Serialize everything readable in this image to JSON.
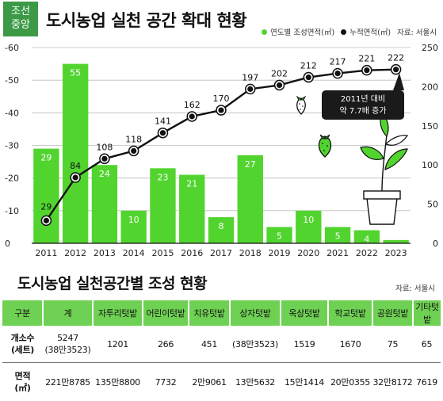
{
  "logo": {
    "line1": "조선",
    "line2": "중앙"
  },
  "title": "도시농업 실천 공간 확대 현황",
  "legend": {
    "bar_label": "연도별 조성면적(㎡)",
    "line_label": "누적면적(㎡)",
    "source": "자료: 서울시"
  },
  "colors": {
    "bar": "#52d42f",
    "line": "#111111",
    "header_bg": "#6fd153"
  },
  "annotation": {
    "line1": "2011년 대비",
    "line2": "약 7.7배 증가"
  },
  "chart_data": {
    "type": "bar+line",
    "categories": [
      "2011",
      "2012",
      "2013",
      "2014",
      "2015",
      "2016",
      "2017",
      "2018",
      "2019",
      "2020",
      "2021",
      "2022",
      "2023"
    ],
    "series": [
      {
        "name": "연도별 조성면적(㎡)",
        "type": "bar",
        "axis": "left",
        "values": [
          29,
          55,
          24,
          10,
          23,
          21,
          8,
          27,
          5,
          10,
          5,
          4,
          1
        ]
      },
      {
        "name": "누적면적(㎡)",
        "type": "line",
        "axis": "right",
        "values": [
          29,
          84,
          108,
          118,
          141,
          162,
          170,
          197,
          202,
          212,
          217,
          221,
          222
        ]
      }
    ],
    "left_axis": {
      "ticks": [
        "-60",
        "-50",
        "-40",
        "-30",
        "-20",
        "-10",
        "0"
      ],
      "range": [
        0,
        60
      ]
    },
    "right_axis": {
      "ticks": [
        "250",
        "200",
        "150",
        "100",
        "50",
        "0"
      ],
      "range": [
        0,
        250
      ]
    },
    "grid": true,
    "legend_position": "top-right"
  },
  "table": {
    "title": "도시농업 실천공간별 조성 현황",
    "source": "자료: 서울시",
    "headers": [
      "구분",
      "계",
      "자투리텃밭",
      "어린이텃밭",
      "치유텃밭",
      "상자텃밭",
      "옥상텃밭",
      "학교텃밭",
      "공원텃밭",
      "기타텃밭"
    ],
    "rows": [
      {
        "label1": "개소수",
        "label2": "(세트)",
        "values": [
          [
            "5247",
            "(38만3523)"
          ],
          [
            "1201"
          ],
          [
            "266"
          ],
          [
            "451"
          ],
          [
            "(38만3523)"
          ],
          [
            "1519"
          ],
          [
            "1670"
          ],
          [
            "75"
          ],
          [
            "65"
          ]
        ]
      },
      {
        "label1": "면적",
        "label2": "(㎡)",
        "values": [
          [
            "221만8785"
          ],
          [
            "135만8800"
          ],
          [
            "7732"
          ],
          [
            "2만9061"
          ],
          [
            "13만5632"
          ],
          [
            "15만1414"
          ],
          [
            "20만0355"
          ],
          [
            "32만8172"
          ],
          [
            "7619"
          ]
        ]
      }
    ]
  }
}
